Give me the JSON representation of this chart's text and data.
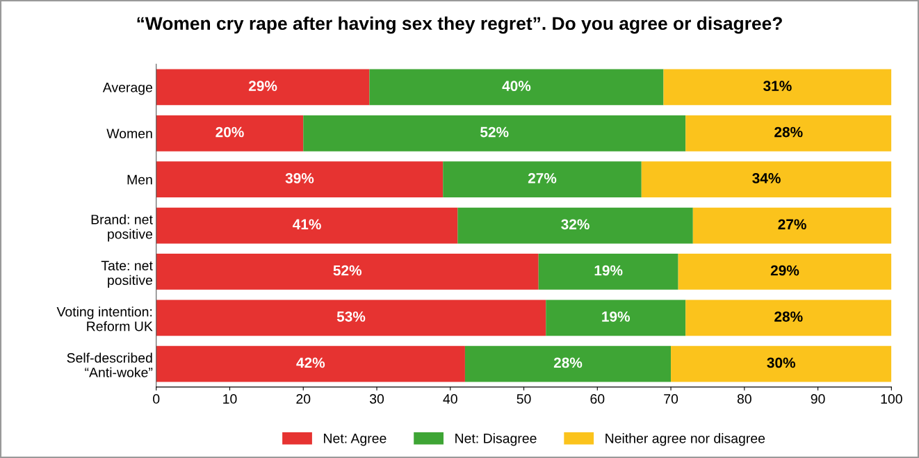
{
  "chart_data": {
    "type": "bar",
    "orientation": "horizontal",
    "stacked": true,
    "title": "“Women cry rape after having sex they regret”. Do you agree or disagree?",
    "categories": [
      "Average",
      "Women",
      "Men",
      "Brand: net\npositive",
      "Tate: net\npositive",
      "Voting intention:\nReform UK",
      "Self-described\n“Anti-woke”"
    ],
    "series": [
      {
        "name": "Net: Agree",
        "color": "#e63331",
        "values": [
          29,
          20,
          39,
          41,
          52,
          53,
          42
        ],
        "value_labels": [
          "29%",
          "20%",
          "39%",
          "41%",
          "52%",
          "53%",
          "42%"
        ]
      },
      {
        "name": "Net: Disagree",
        "color": "#3ea535",
        "values": [
          40,
          52,
          27,
          32,
          19,
          19,
          28
        ],
        "value_labels": [
          "40%",
          "52%",
          "27%",
          "32%",
          "19%",
          "19%",
          "28%"
        ]
      },
      {
        "name": "Neither agree nor disagree",
        "color": "#fbc31c",
        "values": [
          31,
          28,
          34,
          27,
          29,
          28,
          30
        ],
        "value_labels": [
          "31%",
          "28%",
          "34%",
          "27%",
          "29%",
          "28%",
          "30%"
        ]
      }
    ],
    "xlim": [
      0,
      100
    ],
    "xticks": [
      0,
      10,
      20,
      30,
      40,
      50,
      60,
      70,
      80,
      90,
      100
    ],
    "grid": false,
    "legend": "bottom"
  }
}
